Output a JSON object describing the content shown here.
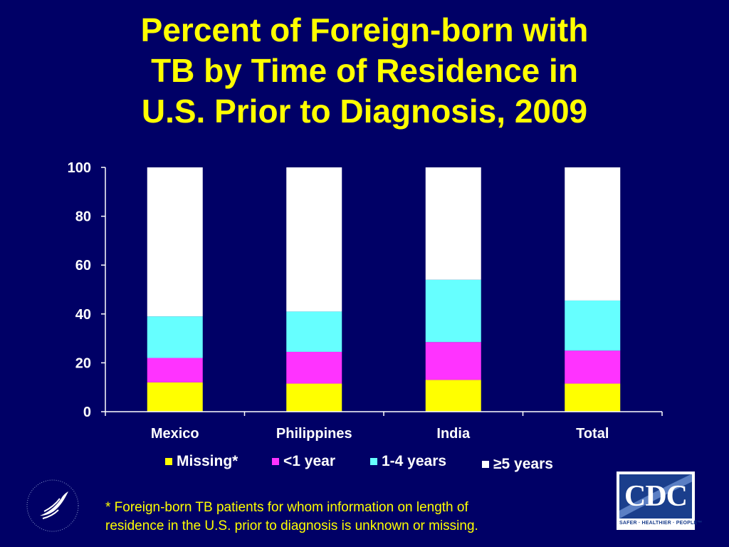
{
  "title": {
    "line1": "Percent of Foreign-born with",
    "line2": "TB by Time of Residence in",
    "line3": "U.S. Prior to Diagnosis, 2009"
  },
  "chart_data": {
    "type": "bar",
    "stacked": true,
    "categories": [
      "Mexico",
      "Philippines",
      "India",
      "Total"
    ],
    "series": [
      {
        "name": "Missing*",
        "color": "#ffff00",
        "values": [
          12,
          11.5,
          13,
          11.5
        ]
      },
      {
        "name": "<1 year",
        "color": "#ff33ff",
        "values": [
          10,
          13,
          15.5,
          13.5
        ]
      },
      {
        "name": "1-4 years",
        "color": "#66ffff",
        "values": [
          17,
          16.5,
          25.5,
          20.5
        ]
      },
      {
        "name": "≥5 years",
        "color": "#ffffff",
        "values": [
          61,
          59,
          46,
          54.5
        ]
      }
    ],
    "ylim": [
      0,
      100
    ],
    "yticks": [
      "0",
      "20",
      "40",
      "60",
      "80",
      "100"
    ],
    "grid": false,
    "legend_position": "bottom"
  },
  "footnote": {
    "line1": "* Foreign-born TB patients for whom information on length of",
    "line2": "residence in the U.S. prior to diagnosis is unknown or missing."
  },
  "logos": {
    "cdc_text": "CDC",
    "cdc_tagline": "SAFER · HEALTHIER · PEOPLE™"
  }
}
